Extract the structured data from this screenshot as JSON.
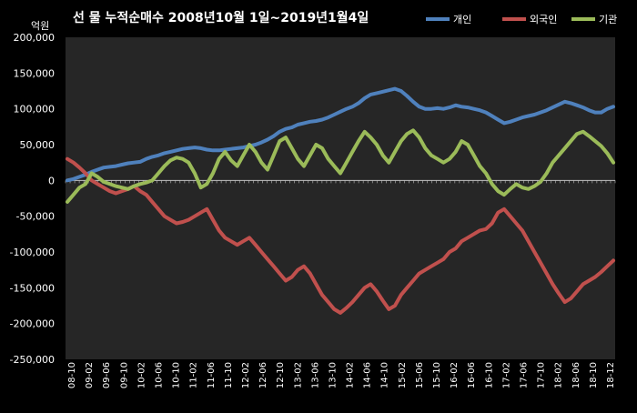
{
  "chart_data": {
    "type": "line",
    "title": "선 물 누적순매수 2008년10월 1일~2019년1월4일",
    "y_unit": "억원",
    "ylim": [
      -250000,
      200000
    ],
    "y_ticks": [
      200000,
      150000,
      100000,
      50000,
      0,
      -50000,
      -100000,
      -150000,
      -200000,
      -250000
    ],
    "y_tick_labels": [
      "200,000",
      "150,000",
      "100,000",
      "50,000",
      "0",
      "-50,000",
      "-100,000",
      "-150,000",
      "-200,000",
      "-250,000"
    ],
    "x_tick_labels": [
      "08-10",
      "09-02",
      "09-06",
      "09-10",
      "10-02",
      "10-06",
      "10-10",
      "11-02",
      "11-06",
      "11-10",
      "12-02",
      "12-06",
      "12-10",
      "13-02",
      "13-06",
      "13-10",
      "14-02",
      "14-06",
      "14-10",
      "15-02",
      "15-06",
      "15-10",
      "16-02",
      "16-06",
      "16-10",
      "17-02",
      "17-06",
      "17-10",
      "18-02",
      "18-06",
      "18-10"
    ],
    "x_tick_labels_last": "18-12",
    "legend_position": "top-right",
    "grid": false,
    "background_color": "#262626",
    "series": [
      {
        "name": "개인",
        "color": "#4F81BD",
        "values": [
          0,
          2000,
          5000,
          8000,
          12000,
          15000,
          18000,
          19000,
          20000,
          22000,
          24000,
          25000,
          26000,
          30000,
          33000,
          35000,
          38000,
          40000,
          42000,
          44000,
          45000,
          46000,
          45000,
          43000,
          42000,
          42000,
          43000,
          44000,
          45000,
          46000,
          48000,
          50000,
          53000,
          57000,
          62000,
          68000,
          72000,
          74000,
          78000,
          80000,
          82000,
          83000,
          85000,
          88000,
          92000,
          96000,
          100000,
          103000,
          108000,
          115000,
          120000,
          122000,
          124000,
          126000,
          128000,
          125000,
          118000,
          110000,
          103000,
          100000,
          100000,
          101000,
          100000,
          102000,
          105000,
          103000,
          102000,
          100000,
          98000,
          95000,
          90000,
          85000,
          80000,
          82000,
          85000,
          88000,
          90000,
          92000,
          95000,
          98000,
          102000,
          106000,
          110000,
          108000,
          105000,
          102000,
          98000,
          95000,
          95000,
          100000,
          103000
        ]
      },
      {
        "name": "외국인",
        "color": "#C0504D",
        "values": [
          30000,
          25000,
          18000,
          10000,
          0,
          -5000,
          -10000,
          -15000,
          -18000,
          -15000,
          -12000,
          -8000,
          -15000,
          -20000,
          -30000,
          -40000,
          -50000,
          -55000,
          -60000,
          -58000,
          -55000,
          -50000,
          -45000,
          -40000,
          -55000,
          -70000,
          -80000,
          -85000,
          -90000,
          -85000,
          -80000,
          -90000,
          -100000,
          -110000,
          -120000,
          -130000,
          -140000,
          -135000,
          -125000,
          -120000,
          -130000,
          -145000,
          -160000,
          -170000,
          -180000,
          -185000,
          -178000,
          -170000,
          -160000,
          -150000,
          -145000,
          -155000,
          -168000,
          -180000,
          -175000,
          -160000,
          -150000,
          -140000,
          -130000,
          -125000,
          -120000,
          -115000,
          -110000,
          -100000,
          -95000,
          -85000,
          -80000,
          -75000,
          -70000,
          -68000,
          -60000,
          -45000,
          -40000,
          -50000,
          -60000,
          -70000,
          -85000,
          -100000,
          -115000,
          -130000,
          -145000,
          -158000,
          -170000,
          -165000,
          -155000,
          -145000,
          -140000,
          -135000,
          -128000,
          -120000,
          -112000
        ]
      },
      {
        "name": "기관",
        "color": "#9BBB59",
        "values": [
          -30000,
          -20000,
          -10000,
          -5000,
          10000,
          5000,
          -2000,
          -5000,
          -8000,
          -10000,
          -12000,
          -8000,
          -5000,
          -3000,
          0,
          10000,
          20000,
          28000,
          32000,
          30000,
          25000,
          10000,
          -10000,
          -5000,
          10000,
          30000,
          40000,
          28000,
          20000,
          35000,
          50000,
          40000,
          25000,
          15000,
          35000,
          55000,
          60000,
          45000,
          30000,
          20000,
          35000,
          50000,
          45000,
          30000,
          20000,
          10000,
          25000,
          40000,
          55000,
          68000,
          60000,
          50000,
          35000,
          25000,
          40000,
          55000,
          65000,
          70000,
          60000,
          45000,
          35000,
          30000,
          25000,
          30000,
          40000,
          55000,
          50000,
          35000,
          20000,
          10000,
          -5000,
          -15000,
          -20000,
          -12000,
          -5000,
          -10000,
          -12000,
          -8000,
          -2000,
          10000,
          25000,
          35000,
          45000,
          55000,
          65000,
          68000,
          62000,
          55000,
          48000,
          38000,
          25000
        ]
      }
    ]
  }
}
